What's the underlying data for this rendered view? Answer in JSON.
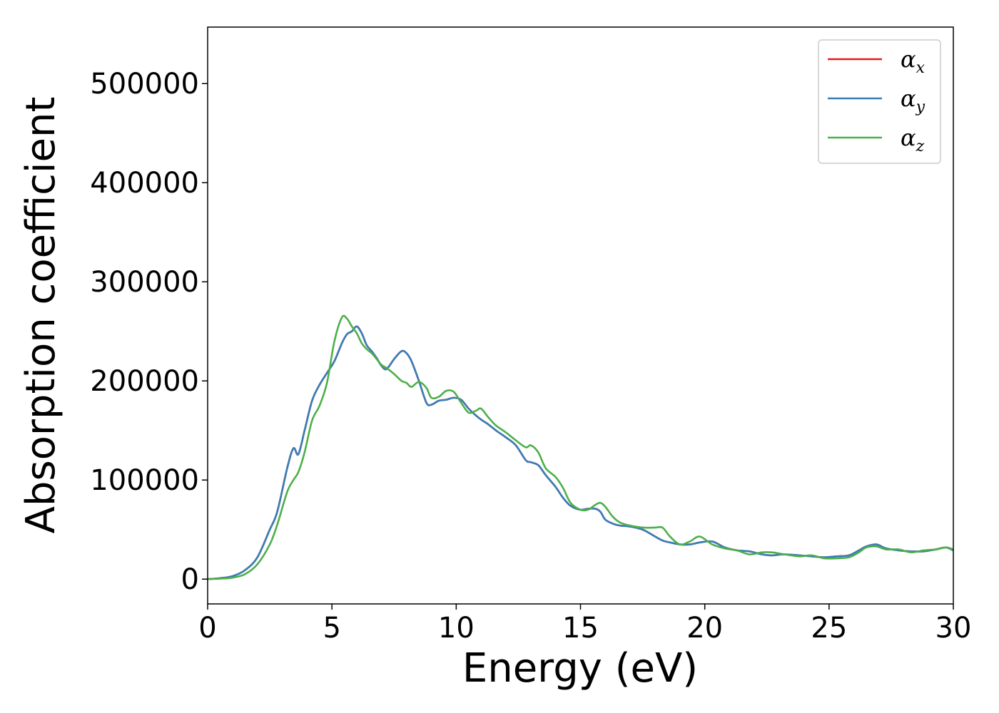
{
  "chart_data": {
    "type": "line",
    "title": "",
    "xlabel": "Energy (eV)",
    "ylabel": "Absorption coefficient",
    "xlim": [
      0,
      30
    ],
    "ylim": [
      -25000,
      557000
    ],
    "xticks": [
      0,
      5,
      10,
      15,
      20,
      25,
      30
    ],
    "xtick_labels": [
      "0",
      "5",
      "10",
      "15",
      "20",
      "25",
      "30"
    ],
    "yticks": [
      0,
      100000,
      200000,
      300000,
      400000,
      500000
    ],
    "ytick_labels": [
      "0",
      "100000",
      "200000",
      "300000",
      "400000",
      "500000"
    ],
    "grid": false,
    "legend_position": "top-right",
    "x": [
      0,
      0.5,
      1,
      1.5,
      2,
      2.5,
      2.8,
      3.2,
      3.45,
      3.65,
      3.9,
      4.2,
      4.5,
      4.8,
      5.1,
      5.4,
      5.6,
      5.8,
      6.0,
      6.2,
      6.4,
      6.6,
      6.8,
      7.0,
      7.2,
      7.5,
      7.8,
      8.0,
      8.2,
      8.5,
      8.8,
      9.0,
      9.3,
      9.6,
      9.9,
      10.2,
      10.5,
      10.8,
      11.0,
      11.3,
      11.6,
      12.0,
      12.4,
      12.8,
      13.0,
      13.3,
      13.6,
      14.0,
      14.3,
      14.6,
      15.0,
      15.3,
      15.6,
      15.8,
      16.0,
      16.3,
      16.6,
      17.0,
      17.5,
      18.0,
      18.3,
      18.6,
      19.0,
      19.4,
      19.8,
      20.3,
      20.8,
      21.3,
      21.8,
      22.3,
      22.7,
      23.2,
      23.8,
      24.3,
      24.8,
      25.3,
      25.8,
      26.2,
      26.5,
      26.9,
      27.3,
      27.8,
      28.3,
      28.8,
      29.3,
      29.7,
      30.0
    ],
    "series": [
      {
        "name": "α_x",
        "color": "#e41a1c",
        "values": [
          0,
          1000,
          3000,
          9000,
          22000,
          50000,
          68000,
          112000,
          132000,
          126000,
          150000,
          180000,
          196000,
          208000,
          220000,
          238000,
          247000,
          250000,
          255000,
          248000,
          236000,
          230000,
          223000,
          215000,
          212000,
          222000,
          230000,
          228000,
          220000,
          200000,
          178000,
          176000,
          180000,
          181000,
          183000,
          181000,
          172000,
          165000,
          161000,
          156000,
          150000,
          143000,
          135000,
          120000,
          118000,
          115000,
          105000,
          93000,
          82000,
          74000,
          70000,
          71000,
          71000,
          68000,
          60000,
          56000,
          54000,
          53000,
          50000,
          43000,
          39000,
          37000,
          35000,
          35000,
          37000,
          38000,
          32000,
          29000,
          28000,
          25000,
          24000,
          25000,
          24000,
          23000,
          22000,
          23000,
          24000,
          29000,
          33000,
          35000,
          31000,
          29000,
          28000,
          28000,
          30000,
          32000,
          29000
        ]
      },
      {
        "name": "α_y",
        "color": "#377eb8",
        "values": [
          0,
          1000,
          3000,
          9000,
          22000,
          50000,
          68000,
          112000,
          132000,
          126000,
          150000,
          180000,
          196000,
          208000,
          220000,
          238000,
          247000,
          250000,
          255000,
          248000,
          236000,
          230000,
          223000,
          215000,
          212000,
          222000,
          230000,
          228000,
          220000,
          200000,
          178000,
          176000,
          180000,
          181000,
          183000,
          181000,
          172000,
          165000,
          161000,
          156000,
          150000,
          143000,
          135000,
          120000,
          118000,
          115000,
          105000,
          93000,
          82000,
          74000,
          70000,
          71000,
          71000,
          68000,
          60000,
          56000,
          54000,
          53000,
          50000,
          43000,
          39000,
          37000,
          35000,
          35000,
          37000,
          38000,
          32000,
          29000,
          28000,
          25000,
          24000,
          25000,
          24000,
          23000,
          22000,
          23000,
          24000,
          29000,
          33000,
          35000,
          31000,
          29000,
          28000,
          28000,
          30000,
          32000,
          29000
        ]
      },
      {
        "name": "α_z",
        "color": "#4daf4a",
        "values": [
          0,
          500,
          1500,
          5000,
          15000,
          35000,
          55000,
          88000,
          100000,
          108000,
          128000,
          160000,
          175000,
          198000,
          240000,
          264000,
          263000,
          255000,
          248000,
          238000,
          232000,
          228000,
          222000,
          216000,
          213000,
          207000,
          200000,
          198000,
          194000,
          199000,
          193000,
          183000,
          184000,
          190000,
          189000,
          178000,
          168000,
          170000,
          172000,
          163000,
          155000,
          148000,
          140000,
          133000,
          135000,
          128000,
          112000,
          103000,
          92000,
          77000,
          70000,
          70000,
          75000,
          77000,
          73000,
          63000,
          57000,
          54000,
          52000,
          52000,
          52000,
          43000,
          35000,
          38000,
          43000,
          35000,
          31000,
          29000,
          25000,
          27000,
          27000,
          25000,
          23000,
          24000,
          21000,
          21000,
          22000,
          27000,
          32000,
          33000,
          30000,
          30000,
          27000,
          29000,
          30000,
          32000,
          30000
        ]
      }
    ]
  },
  "legend": {
    "items": [
      {
        "base": "α",
        "sub": "x",
        "color": "#e41a1c"
      },
      {
        "base": "α",
        "sub": "y",
        "color": "#377eb8"
      },
      {
        "base": "α",
        "sub": "z",
        "color": "#4daf4a"
      }
    ]
  }
}
